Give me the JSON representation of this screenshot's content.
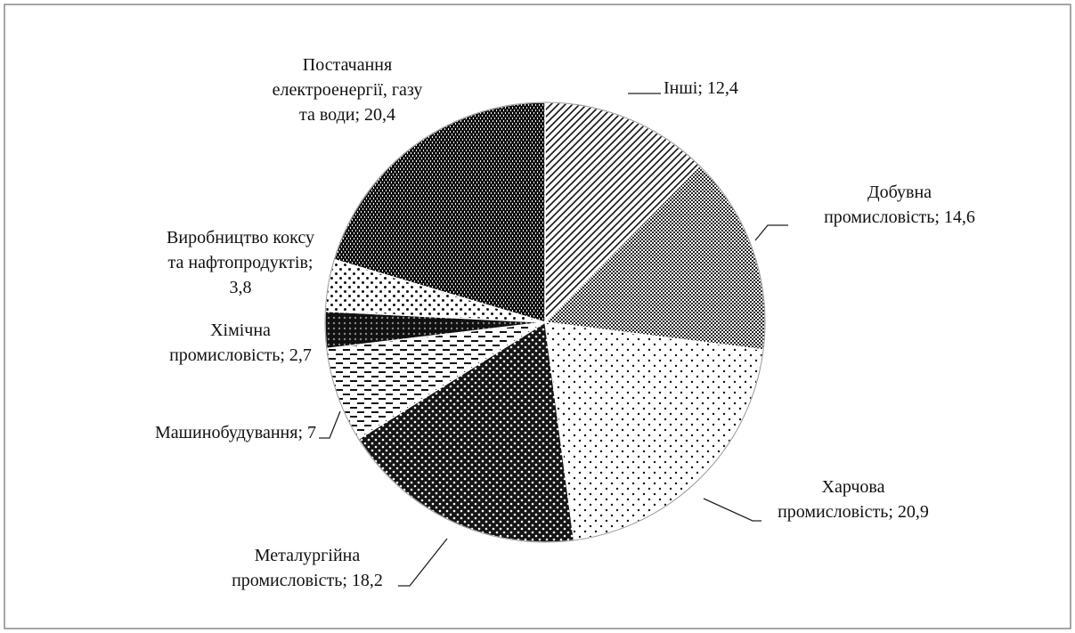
{
  "chart_data": {
    "type": "pie",
    "labels": [
      "Інші; 12,4",
      "Добувна\nпромисловість; 14,6",
      "Харчова\nпромисловість; 20,9",
      "Металургійна\nпромисловість; 18,2",
      "Машинобудування; 7",
      "Хімічна\nпромисловість; 2,7",
      "Виробництво коксу\nта нафтопродуктів;\n3,8",
      "Постачання\nелектроенергії, газу\nта води; 20,4"
    ],
    "values": [
      12.4,
      14.6,
      20.9,
      18.2,
      7,
      2.7,
      3.8,
      20.4
    ]
  }
}
